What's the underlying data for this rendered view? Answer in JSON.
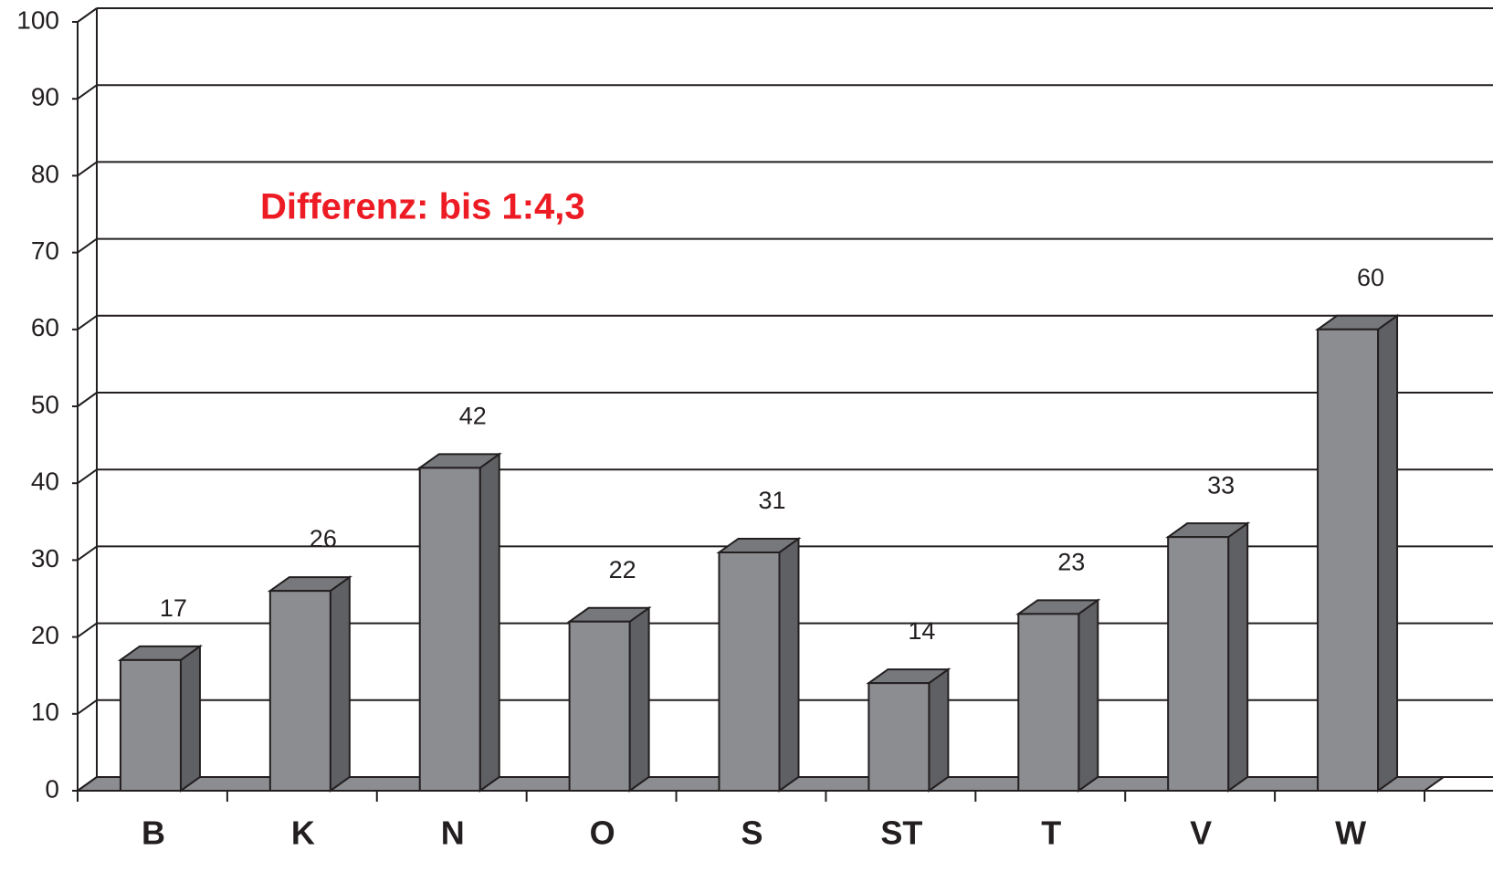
{
  "chart_data": {
    "type": "bar",
    "annotation": "Differenz: bis 1:4,3",
    "categories": [
      "B",
      "K",
      "N",
      "O",
      "S",
      "ST",
      "T",
      "V",
      "W"
    ],
    "values": [
      17,
      26,
      42,
      22,
      31,
      14,
      23,
      33,
      60
    ],
    "color": "#8c8d91",
    "ylim": [
      0,
      100
    ],
    "yticks": [
      0,
      10,
      20,
      30,
      40,
      50,
      60,
      70,
      80,
      90,
      100
    ],
    "grid": true
  }
}
